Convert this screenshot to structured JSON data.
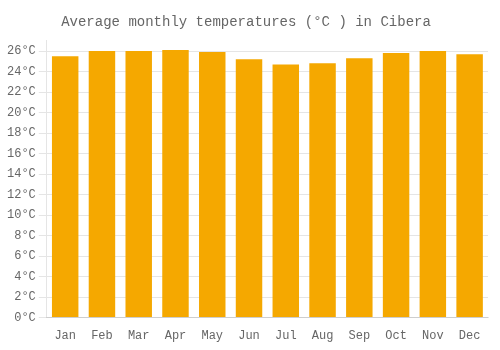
{
  "chart_data": {
    "type": "bar",
    "title": "Average monthly temperatures (°C ) in Cibera",
    "categories": [
      "Jan",
      "Feb",
      "Mar",
      "Apr",
      "May",
      "Jun",
      "Jul",
      "Aug",
      "Sep",
      "Oct",
      "Nov",
      "Dec"
    ],
    "values": [
      25.5,
      26.0,
      26.0,
      26.1,
      25.9,
      25.2,
      24.7,
      24.8,
      25.3,
      25.8,
      26.0,
      25.7
    ],
    "color": "#F5A800",
    "ylim": [
      0,
      27
    ],
    "yticks": [
      {
        "value": 0,
        "label": "0°C"
      },
      {
        "value": 2,
        "label": "2°C"
      },
      {
        "value": 4,
        "label": "4°C"
      },
      {
        "value": 6,
        "label": "6°C"
      },
      {
        "value": 8,
        "label": "8°C"
      },
      {
        "value": 10,
        "label": "10°C"
      },
      {
        "value": 12,
        "label": "12°C"
      },
      {
        "value": 14,
        "label": "14°C"
      },
      {
        "value": 16,
        "label": "16°C"
      },
      {
        "value": 18,
        "label": "18°C"
      },
      {
        "value": 20,
        "label": "20°C"
      },
      {
        "value": 22,
        "label": "22°C"
      },
      {
        "value": 24,
        "label": "24°C"
      },
      {
        "value": 26,
        "label": "26°C"
      }
    ],
    "grid": true
  }
}
